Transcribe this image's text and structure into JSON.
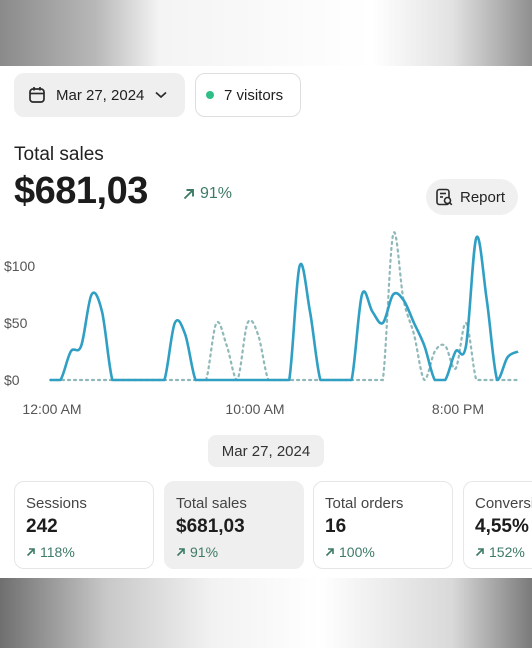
{
  "header": {
    "date_label": "Mar 27, 2024",
    "visitors_label": "7 visitors",
    "status_color": "#2fbf86"
  },
  "summary": {
    "title": "Total sales",
    "amount": "$681,03",
    "delta": "91%",
    "report_label": "Report"
  },
  "chart_data": {
    "type": "line",
    "y_ticks": [
      "$100",
      "$50",
      "$0"
    ],
    "x_ticks": [
      "12:00 AM",
      "10:00 AM",
      "8:00 PM"
    ],
    "ylim": [
      0,
      130
    ],
    "series": [
      {
        "style": "solid",
        "color": "#2f9fc4",
        "values": [
          0,
          0,
          25,
          30,
          75,
          60,
          0,
          0,
          0,
          0,
          0,
          0,
          50,
          40,
          0,
          0,
          0,
          0,
          0,
          0,
          0,
          0,
          0,
          0,
          100,
          60,
          0,
          0,
          0,
          0,
          75,
          60,
          50,
          75,
          70,
          50,
          30,
          0,
          0,
          25,
          30,
          125,
          70,
          0,
          20,
          25
        ]
      },
      {
        "style": "dotted",
        "color": "#8fb8b8",
        "values": [
          0,
          0,
          0,
          0,
          0,
          0,
          0,
          0,
          0,
          0,
          0,
          0,
          0,
          0,
          0,
          0,
          50,
          30,
          0,
          50,
          40,
          0,
          0,
          0,
          0,
          0,
          0,
          0,
          0,
          0,
          0,
          0,
          0,
          128,
          70,
          40,
          0,
          25,
          30,
          10,
          50,
          0,
          0,
          0,
          0,
          0
        ]
      }
    ]
  },
  "selected_date": "Mar 27, 2024",
  "metrics": [
    {
      "label": "Sessions",
      "value": "242",
      "delta": "118%"
    },
    {
      "label": "Total sales",
      "value": "$681,03",
      "delta": "91%"
    },
    {
      "label": "Total orders",
      "value": "16",
      "delta": "100%"
    },
    {
      "label": "Conversion rate",
      "value": "4,55%",
      "delta": "152%"
    }
  ]
}
